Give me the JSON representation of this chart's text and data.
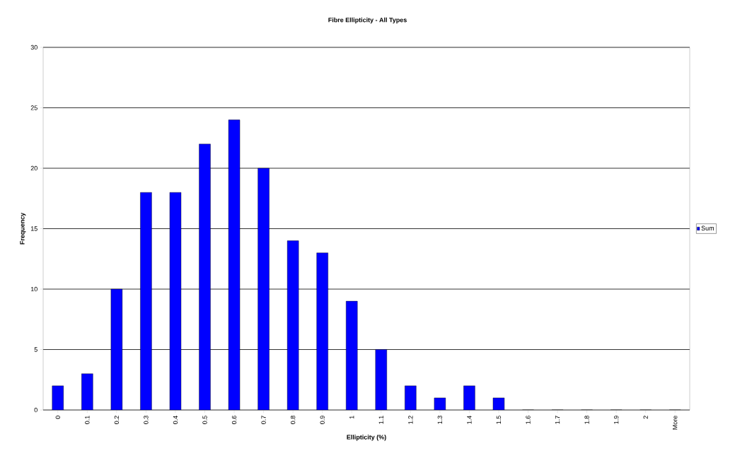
{
  "chart_data": {
    "type": "bar",
    "title": "Fibre Ellipticity - All Types",
    "xlabel": "Ellipticity (%)",
    "ylabel": "Frequency",
    "categories": [
      "0",
      "0.1",
      "0.2",
      "0.3",
      "0.4",
      "0.5",
      "0.6",
      "0.7",
      "0.8",
      "0.9",
      "1",
      "1.1",
      "1.2",
      "1.3",
      "1.4",
      "1.5",
      "1.6",
      "1.7",
      "1.8",
      "1.9",
      "2",
      "More"
    ],
    "series": [
      {
        "name": "Sum",
        "color": "#0000ff",
        "values": [
          2,
          3,
          10,
          18,
          18,
          22,
          24,
          20,
          14,
          13,
          9,
          5,
          2,
          1,
          2,
          1,
          0,
          0,
          0,
          0,
          0,
          0
        ]
      }
    ],
    "ylim": [
      0,
      30
    ],
    "yticks": [
      0,
      5,
      10,
      15,
      20,
      25,
      30
    ],
    "grid": "y",
    "legend": "right"
  }
}
